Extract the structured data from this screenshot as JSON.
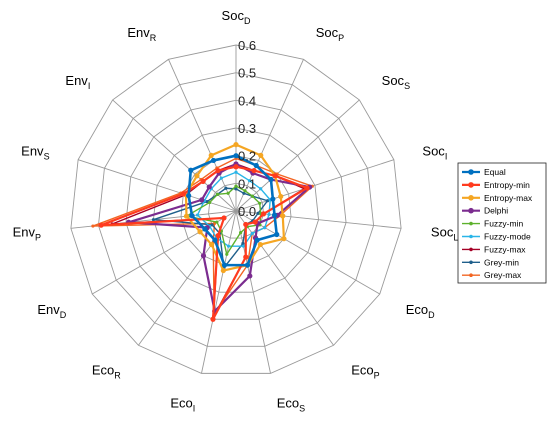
{
  "chart_data": {
    "type": "radar",
    "axes": [
      {
        "main": "Soc",
        "sub": "D"
      },
      {
        "main": "Soc",
        "sub": "P"
      },
      {
        "main": "Soc",
        "sub": "S"
      },
      {
        "main": "Soc",
        "sub": "I"
      },
      {
        "main": "Soc",
        "sub": "L"
      },
      {
        "main": "Eco",
        "sub": "D"
      },
      {
        "main": "Eco",
        "sub": "P"
      },
      {
        "main": "Eco",
        "sub": "S"
      },
      {
        "main": "Eco",
        "sub": "I"
      },
      {
        "main": "Eco",
        "sub": "R"
      },
      {
        "main": "Env",
        "sub": "D"
      },
      {
        "main": "Env",
        "sub": "P"
      },
      {
        "main": "Env",
        "sub": "S"
      },
      {
        "main": "Env",
        "sub": "I"
      },
      {
        "main": "Env",
        "sub": "R"
      }
    ],
    "rlim": [
      0,
      0.6
    ],
    "ticks": [
      "0.0",
      "0.1",
      "0.2",
      "0.3",
      "0.4",
      "0.5",
      "0.6"
    ],
    "grid": true,
    "legend_position": "right",
    "series": [
      {
        "name": "Equal",
        "color": "#0070C0",
        "values": [
          0.2,
          0.18,
          0.17,
          0.14,
          0.14,
          0.17,
          0.13,
          0.2,
          0.2,
          0.13,
          0.13,
          0.16,
          0.18,
          0.22,
          0.2
        ]
      },
      {
        "name": "Entropy-min",
        "color": "#FF3B1F",
        "values": [
          0.16,
          0.16,
          0.19,
          0.27,
          0.1,
          0.08,
          0.06,
          0.17,
          0.4,
          0.11,
          0.05,
          0.49,
          0.2,
          0.16,
          0.16
        ]
      },
      {
        "name": "Entropy-max",
        "color": "#F5A623",
        "values": [
          0.24,
          0.22,
          0.19,
          0.17,
          0.17,
          0.2,
          0.15,
          0.2,
          0.22,
          0.15,
          0.15,
          0.18,
          0.19,
          0.19,
          0.22
        ]
      },
      {
        "name": "Delphi",
        "color": "#7B2C8F",
        "values": [
          0.17,
          0.15,
          0.17,
          0.28,
          0.15,
          0.09,
          0.12,
          0.24,
          0.37,
          0.2,
          0.12,
          0.39,
          0.13,
          0.13,
          0.15
        ]
      },
      {
        "name": "Fuzzy-min",
        "color": "#5DB12C",
        "values": [
          0.09,
          0.08,
          0.08,
          0.09,
          0.09,
          0.1,
          0.07,
          0.08,
          0.16,
          0.09,
          0.08,
          0.18,
          0.1,
          0.09,
          0.07
        ]
      },
      {
        "name": "Fuzzy-mode",
        "color": "#29B5E8",
        "values": [
          0.14,
          0.12,
          0.12,
          0.13,
          0.12,
          0.12,
          0.1,
          0.13,
          0.13,
          0.12,
          0.11,
          0.14,
          0.12,
          0.12,
          0.13
        ]
      },
      {
        "name": "Fuzzy-max",
        "color": "#A50026",
        "values": [
          0.17,
          0.16,
          0.19,
          0.26,
          0.1,
          0.08,
          0.06,
          0.17,
          0.39,
          0.11,
          0.05,
          0.45,
          0.19,
          0.16,
          0.16
        ]
      },
      {
        "name": "Grey-min",
        "color": "#1F5F8B",
        "values": [
          0.08,
          0.07,
          0.08,
          0.12,
          0.08,
          0.07,
          0.06,
          0.12,
          0.21,
          0.1,
          0.1,
          0.3,
          0.11,
          0.09,
          0.09
        ]
      },
      {
        "name": "Grey-max",
        "color": "#F26522",
        "values": [
          0.19,
          0.18,
          0.2,
          0.29,
          0.16,
          0.12,
          0.1,
          0.2,
          0.38,
          0.14,
          0.09,
          0.52,
          0.21,
          0.17,
          0.17
        ]
      }
    ]
  }
}
